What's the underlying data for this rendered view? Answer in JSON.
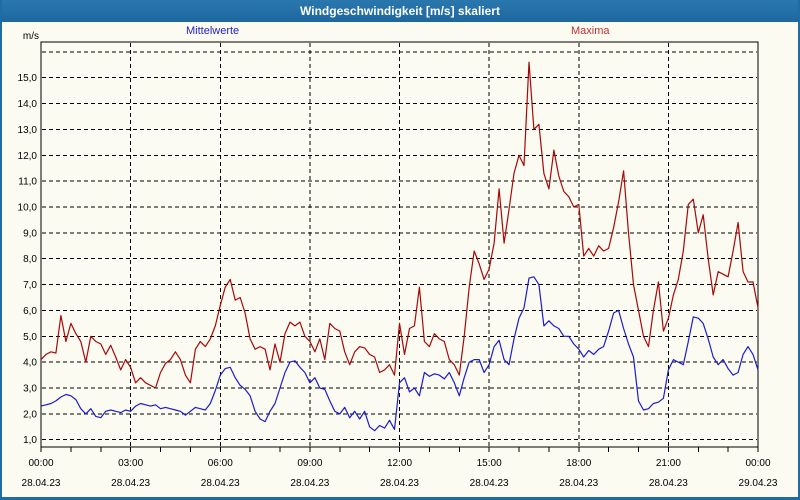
{
  "window": {
    "title": "Windgeschwindigkeit [m/s] skaliert",
    "header_color_top": "#2a77ae",
    "header_color_bottom": "#1d679f",
    "border_color": "#1f6ba3",
    "background_color": "#fbfbf2"
  },
  "legend": {
    "mean_label": "Mittelwerte",
    "mean_color": "#2222cc",
    "max_label": "Maxima",
    "max_color": "#c03030"
  },
  "y_axis": {
    "unit": "m/s",
    "tick_labels": [
      "1,0",
      "2,0",
      "3,0",
      "4,0",
      "5,0",
      "6,0",
      "7,0",
      "8,0",
      "9,0",
      "10,0",
      "11,0",
      "12,0",
      "13,0",
      "14,0",
      "15,0"
    ],
    "unlabeled_top_gridline_value": 16
  },
  "x_axis": {
    "ticks": [
      {
        "time": "00:00",
        "date": "28.04.23"
      },
      {
        "time": "03:00",
        "date": "28.04.23"
      },
      {
        "time": "06:00",
        "date": "28.04.23"
      },
      {
        "time": "09:00",
        "date": "28.04.23"
      },
      {
        "time": "12:00",
        "date": "28.04.23"
      },
      {
        "time": "15:00",
        "date": "28.04.23"
      },
      {
        "time": "18:00",
        "date": "28.04.23"
      },
      {
        "time": "21:00",
        "date": "28.04.23"
      },
      {
        "time": "00:00",
        "date": "29.04.23"
      }
    ],
    "minor_tick_every_hours": 1
  },
  "chart_data": {
    "type": "line",
    "title": "Windgeschwindigkeit [m/s] skaliert",
    "ylabel": "m/s",
    "xlim_hours": [
      0,
      24
    ],
    "ylim": [
      0.7,
      16.4
    ],
    "gridlines_y_step": 1,
    "gridlines_x_step_hours": 3,
    "grid_style": "black dashed",
    "legend_position": "top",
    "x_interval_minutes": 10,
    "series": [
      {
        "name": "Mittelwerte",
        "color": "#1c1ccc",
        "values": [
          2.3,
          2.35,
          2.4,
          2.5,
          2.65,
          2.75,
          2.7,
          2.55,
          2.2,
          2.0,
          2.2,
          1.9,
          1.85,
          2.1,
          2.15,
          2.1,
          2.05,
          2.15,
          2.1,
          2.3,
          2.4,
          2.35,
          2.3,
          2.35,
          2.2,
          2.25,
          2.2,
          2.15,
          2.1,
          1.95,
          2.1,
          2.25,
          2.2,
          2.15,
          2.4,
          2.9,
          3.5,
          3.75,
          3.8,
          3.4,
          3.1,
          2.95,
          2.7,
          2.1,
          1.8,
          1.7,
          2.1,
          2.4,
          3.0,
          3.6,
          4.0,
          4.05,
          3.8,
          3.6,
          3.2,
          3.4,
          3.0,
          2.95,
          2.5,
          2.1,
          2.0,
          2.25,
          1.85,
          2.1,
          1.8,
          2.1,
          1.5,
          1.35,
          1.55,
          1.45,
          1.75,
          1.4,
          3.2,
          3.4,
          2.85,
          3.0,
          2.7,
          3.6,
          3.45,
          3.55,
          3.5,
          3.35,
          3.6,
          3.2,
          2.7,
          3.4,
          4.0,
          4.1,
          4.1,
          3.6,
          3.9,
          4.6,
          4.85,
          4.1,
          3.9,
          4.9,
          5.7,
          6.1,
          7.25,
          7.3,
          7.0,
          5.4,
          5.6,
          5.4,
          5.3,
          5.0,
          5.0,
          4.7,
          4.5,
          4.2,
          4.45,
          4.3,
          4.5,
          4.6,
          5.2,
          5.9,
          6.0,
          5.3,
          4.7,
          4.2,
          2.5,
          2.15,
          2.2,
          2.4,
          2.45,
          2.6,
          3.7,
          4.1,
          4.0,
          3.9,
          4.8,
          5.75,
          5.7,
          5.5,
          4.9,
          4.2,
          3.9,
          4.1,
          3.75,
          3.5,
          3.6,
          4.3,
          4.6,
          4.3,
          3.7
        ]
      },
      {
        "name": "Maxima",
        "color": "#a80808",
        "values": [
          4.1,
          4.3,
          4.4,
          4.35,
          5.8,
          4.8,
          5.5,
          5.1,
          4.8,
          4.0,
          5.0,
          4.8,
          4.7,
          4.3,
          4.65,
          4.2,
          3.7,
          4.1,
          3.8,
          3.2,
          3.4,
          3.2,
          3.1,
          3.0,
          3.6,
          3.95,
          4.1,
          4.4,
          4.1,
          3.5,
          3.2,
          4.5,
          4.8,
          4.6,
          4.9,
          5.4,
          6.2,
          6.9,
          7.2,
          6.4,
          6.5,
          5.9,
          4.9,
          4.5,
          4.6,
          4.5,
          3.7,
          4.7,
          4.0,
          5.1,
          5.55,
          5.4,
          5.55,
          5.0,
          4.8,
          4.4,
          4.9,
          4.1,
          5.5,
          5.3,
          5.2,
          4.4,
          3.9,
          4.4,
          4.6,
          4.55,
          4.3,
          4.2,
          3.6,
          3.7,
          3.9,
          3.5,
          5.5,
          4.3,
          5.3,
          5.4,
          6.9,
          4.8,
          4.6,
          5.1,
          4.9,
          4.8,
          4.1,
          3.9,
          3.5,
          5.0,
          6.9,
          8.3,
          7.8,
          7.2,
          7.6,
          8.6,
          10.7,
          8.6,
          9.9,
          11.3,
          12.0,
          11.6,
          15.6,
          13.0,
          13.2,
          11.3,
          10.7,
          12.2,
          11.2,
          10.6,
          10.4,
          10.0,
          10.1,
          8.1,
          8.4,
          8.1,
          8.5,
          8.3,
          8.4,
          9.2,
          10.2,
          11.4,
          9.0,
          7.0,
          6.0,
          5.0,
          4.6,
          6.0,
          7.1,
          5.2,
          5.7,
          6.6,
          7.2,
          8.3,
          10.1,
          10.3,
          9.0,
          9.7,
          8.0,
          6.6,
          7.5,
          7.4,
          7.3,
          8.3,
          9.4,
          7.5,
          7.1,
          7.1,
          6.1
        ]
      }
    ]
  }
}
